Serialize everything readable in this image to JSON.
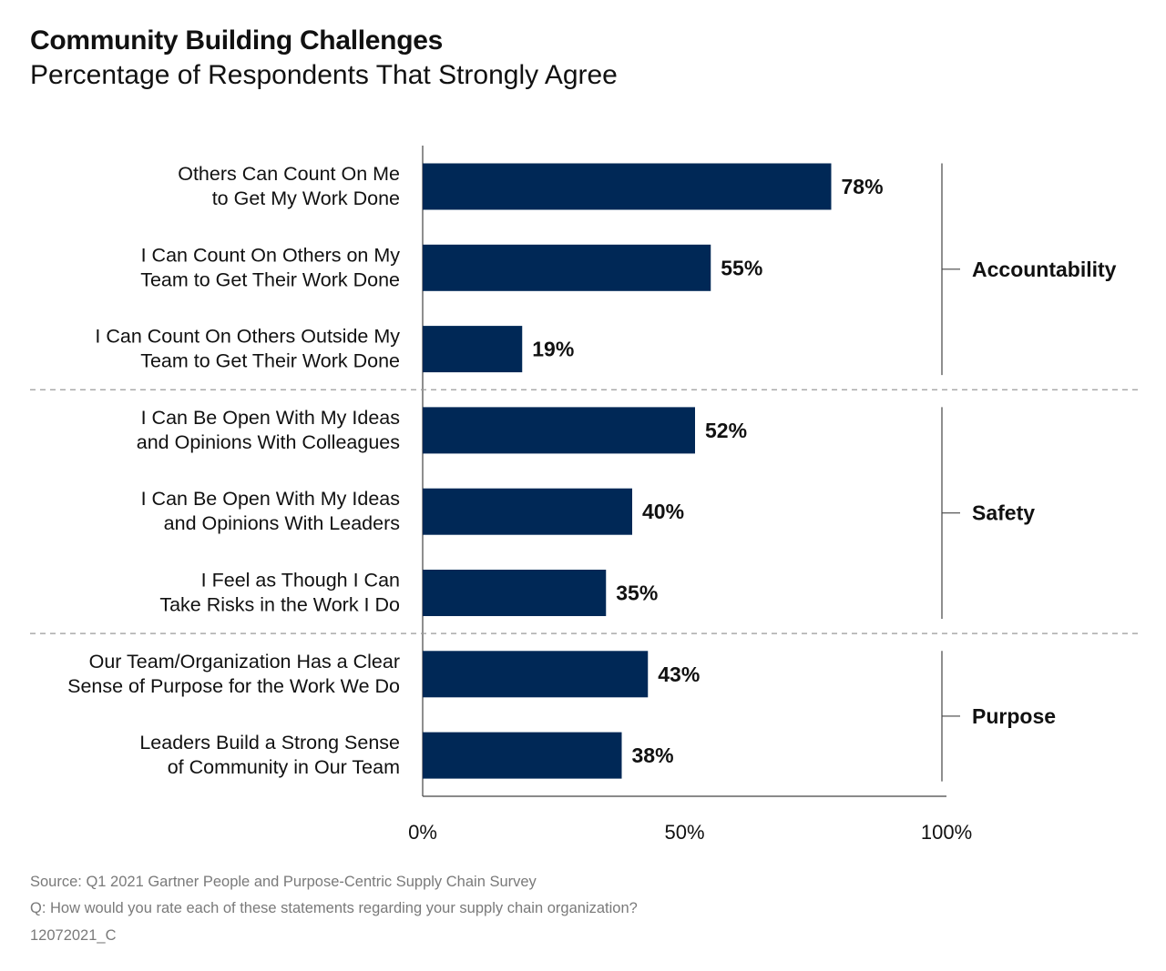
{
  "header": {
    "title": "Community Building Challenges",
    "subtitle": "Percentage of Respondents That Strongly Agree"
  },
  "chart_data": {
    "type": "bar",
    "orientation": "horizontal",
    "title": "Community Building Challenges",
    "subtitle": "Percentage of Respondents That Strongly Agree",
    "categories": [
      [
        "Others Can Count On Me",
        "to Get My Work Done"
      ],
      [
        "I Can Count On Others on My",
        "Team to Get Their Work Done"
      ],
      [
        "I Can Count On Others Outside My",
        "Team to Get Their Work Done"
      ],
      [
        "I Can Be Open With My Ideas",
        "and Opinions With Colleagues"
      ],
      [
        "I Can Be Open With My Ideas",
        "and Opinions With Leaders"
      ],
      [
        "I Feel as Though I Can",
        "Take Risks in the Work I Do"
      ],
      [
        "Our Team/Organization Has a Clear",
        "Sense of Purpose for the Work We Do"
      ],
      [
        "Leaders Build a Strong Sense",
        "of Community in Our Team"
      ]
    ],
    "values": [
      78,
      55,
      19,
      52,
      40,
      35,
      43,
      38
    ],
    "value_labels": [
      "78%",
      "55%",
      "19%",
      "52%",
      "40%",
      "35%",
      "43%",
      "38%"
    ],
    "groups": [
      {
        "name": "Accountability",
        "items": [
          0,
          1,
          2
        ]
      },
      {
        "name": "Safety",
        "items": [
          3,
          4,
          5
        ]
      },
      {
        "name": "Purpose",
        "items": [
          6,
          7
        ]
      }
    ],
    "xlim": [
      0,
      100
    ],
    "x_ticks": [
      "0%",
      "50%",
      "100%"
    ],
    "grid": false,
    "bar_color": "#002856",
    "separator_color": "#9a9a9a"
  },
  "footer": {
    "source": "Source: Q1 2021 Gartner People and Purpose-Centric Supply Chain Survey",
    "question": "Q: How would you rate each of these statements regarding your supply chain organization?",
    "code": "12072021_C"
  }
}
